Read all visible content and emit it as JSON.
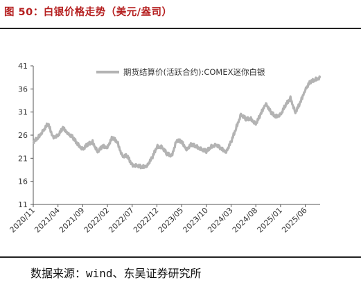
{
  "header": {
    "title": "图 50：白银价格走势（美元/盎司）"
  },
  "footer": {
    "source": "数据来源：wind、东吴证券研究所"
  },
  "chart_data": {
    "type": "line",
    "title": "图 50：白银价格走势（美元/盎司）",
    "xlabel": "",
    "ylabel": "",
    "ylim": [
      11,
      41
    ],
    "yticks": [
      11,
      16,
      21,
      26,
      31,
      36,
      41
    ],
    "xlim": [
      "2020-11",
      "2025-09"
    ],
    "xticks": [
      "2020/11",
      "2021/04",
      "2021/09",
      "2022/02",
      "2022/07",
      "2022/12",
      "2023/05",
      "2023/10",
      "2024/03",
      "2024/08",
      "2025/01",
      "2025/06"
    ],
    "grid": false,
    "legend_position": "top-right",
    "line_color": "#b3b3b3",
    "series": [
      {
        "name": "期货结算价(活跃合约):COMEX迷你白银",
        "points": [
          [
            "2020-11",
            24.5
          ],
          [
            "2020-12",
            25.5
          ],
          [
            "2021-01",
            27.0
          ],
          [
            "2021-02",
            28.5
          ],
          [
            "2021-03",
            25.5
          ],
          [
            "2021-04",
            26.0
          ],
          [
            "2021-05",
            27.5
          ],
          [
            "2021-06",
            26.5
          ],
          [
            "2021-07",
            25.5
          ],
          [
            "2021-08",
            24.0
          ],
          [
            "2021-09",
            23.0
          ],
          [
            "2021-10",
            24.0
          ],
          [
            "2021-11",
            24.5
          ],
          [
            "2021-12",
            22.5
          ],
          [
            "2022-01",
            23.5
          ],
          [
            "2022-02",
            23.5
          ],
          [
            "2022-03",
            25.5
          ],
          [
            "2022-04",
            24.5
          ],
          [
            "2022-05",
            21.5
          ],
          [
            "2022-06",
            21.5
          ],
          [
            "2022-07",
            19.5
          ],
          [
            "2022-08",
            19.5
          ],
          [
            "2022-09",
            19.0
          ],
          [
            "2022-10",
            19.5
          ],
          [
            "2022-11",
            21.0
          ],
          [
            "2022-12",
            23.5
          ],
          [
            "2023-01",
            23.5
          ],
          [
            "2023-02",
            22.0
          ],
          [
            "2023-03",
            21.5
          ],
          [
            "2023-04",
            25.0
          ],
          [
            "2023-05",
            24.5
          ],
          [
            "2023-06",
            23.0
          ],
          [
            "2023-07",
            24.0
          ],
          [
            "2023-08",
            23.5
          ],
          [
            "2023-09",
            23.0
          ],
          [
            "2023-10",
            22.5
          ],
          [
            "2023-11",
            23.5
          ],
          [
            "2023-12",
            24.0
          ],
          [
            "2024-01",
            23.0
          ],
          [
            "2024-02",
            22.5
          ],
          [
            "2024-03",
            24.5
          ],
          [
            "2024-04",
            27.5
          ],
          [
            "2024-05",
            30.5
          ],
          [
            "2024-06",
            29.5
          ],
          [
            "2024-07",
            29.5
          ],
          [
            "2024-08",
            28.5
          ],
          [
            "2024-09",
            30.5
          ],
          [
            "2024-10",
            33.0
          ],
          [
            "2024-11",
            31.0
          ],
          [
            "2024-12",
            30.0
          ],
          [
            "2025-01",
            30.5
          ],
          [
            "2025-02",
            32.5
          ],
          [
            "2025-03",
            34.0
          ],
          [
            "2025-04",
            31.0
          ],
          [
            "2025-05",
            33.0
          ],
          [
            "2025-06",
            36.0
          ],
          [
            "2025-07",
            37.5
          ],
          [
            "2025-08",
            38.0
          ],
          [
            "2025-09",
            38.5
          ]
        ]
      }
    ]
  }
}
